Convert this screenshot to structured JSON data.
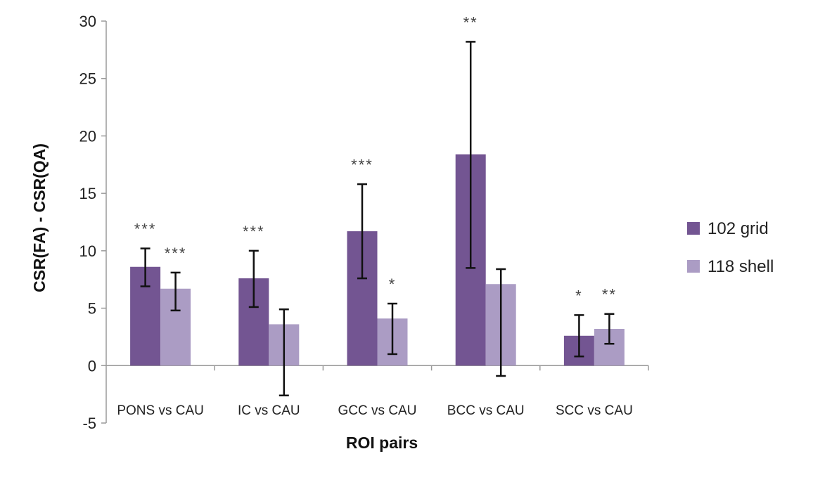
{
  "chart_data": {
    "type": "bar",
    "title": "",
    "xlabel": "ROI pairs",
    "ylabel": "CSR(FA) - CSR(QA)",
    "ylim": [
      -5,
      30
    ],
    "yticks": [
      30,
      25,
      20,
      15,
      10,
      5,
      0,
      -5
    ],
    "grid": false,
    "legend_position": "right",
    "categories": [
      "PONS vs CAU",
      "IC vs CAU",
      "GCC vs CAU",
      "BCC vs CAU",
      "SCC vs CAU"
    ],
    "series": [
      {
        "name": "102 grid",
        "color": "#735592",
        "values": [
          8.6,
          7.6,
          11.7,
          18.4,
          2.6
        ],
        "error_low": [
          6.9,
          5.1,
          7.6,
          8.5,
          0.8
        ],
        "error_high": [
          10.2,
          10.0,
          15.8,
          28.2,
          4.4
        ],
        "significance": [
          "***",
          "***",
          "***",
          "**",
          "*"
        ]
      },
      {
        "name": "118 shell",
        "color": "#ab9cc4",
        "values": [
          6.7,
          3.6,
          4.1,
          7.1,
          3.2
        ],
        "error_low": [
          4.8,
          -2.6,
          1.0,
          -0.9,
          1.9
        ],
        "error_high": [
          8.1,
          4.9,
          5.4,
          8.4,
          4.5
        ],
        "significance": [
          "***",
          "",
          "*",
          "",
          "**"
        ]
      }
    ]
  }
}
